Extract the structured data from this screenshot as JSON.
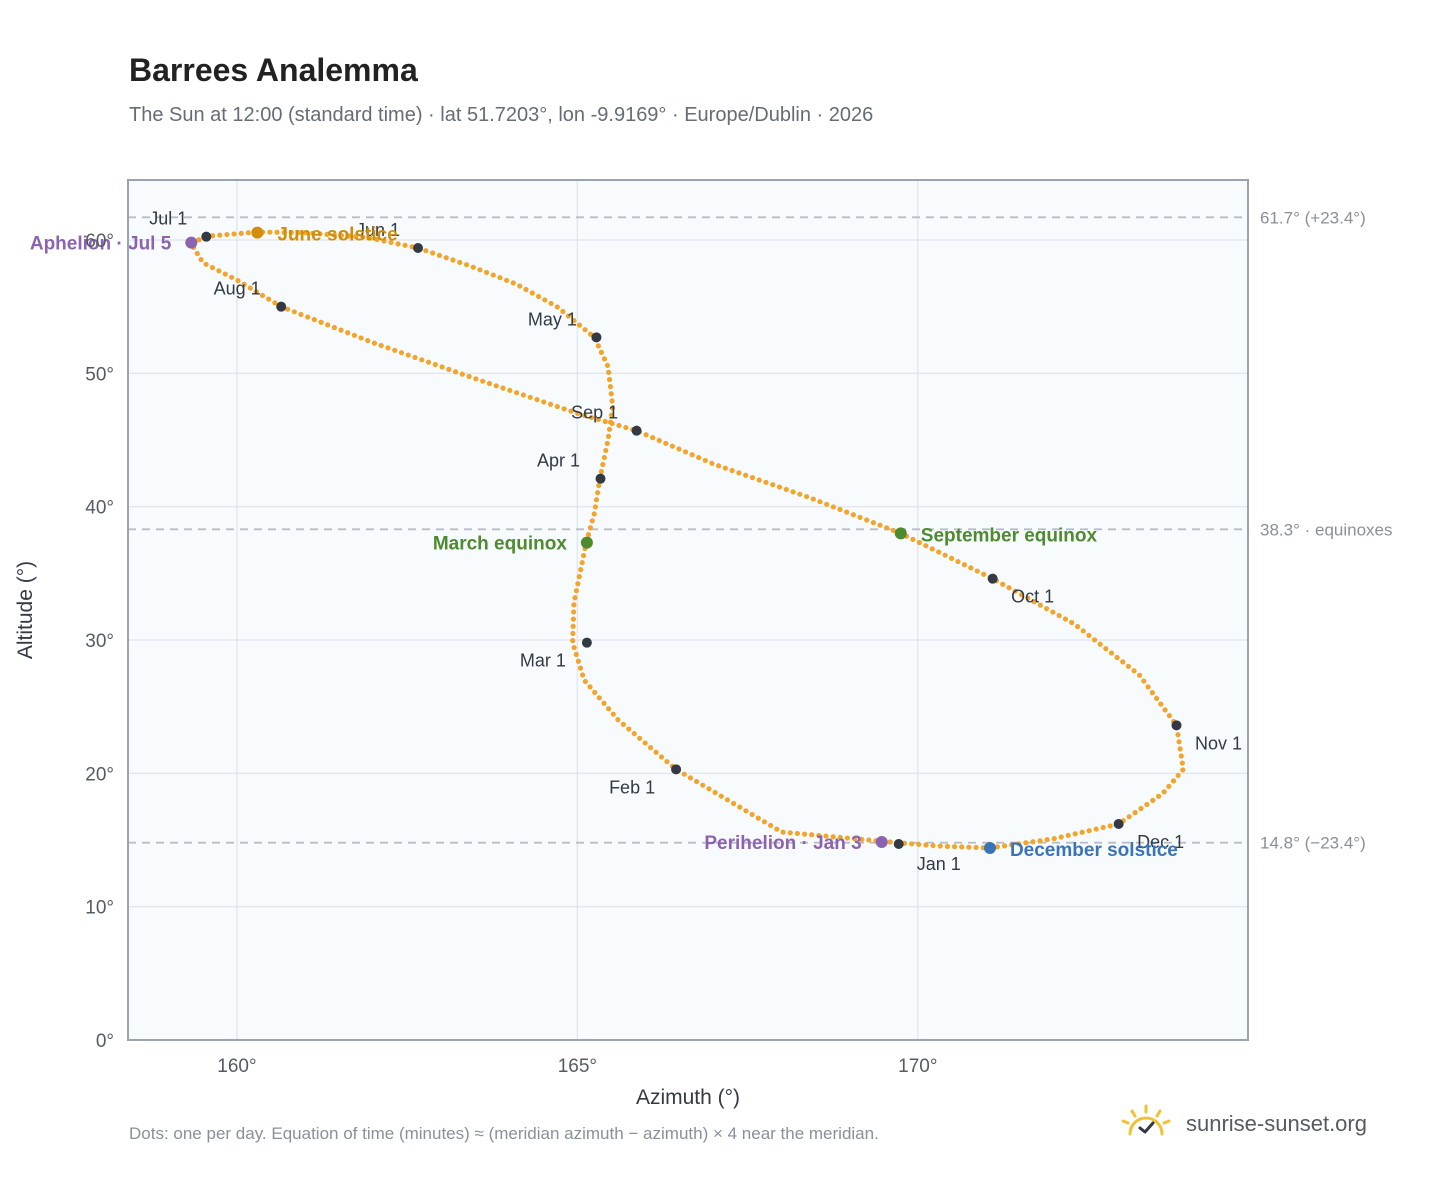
{
  "header": {
    "title": "Barrees Analemma",
    "subtitle": "The Sun at 12:00 (standard time) · lat 51.7203°, lon -9.9169° · Europe/Dublin · 2026"
  },
  "footer": {
    "note": "Dots: one per day. Equation of time (minutes) ≈ (meridian azimuth − azimuth) × 4 near the meridian.",
    "brand": "sunrise-sunset.org"
  },
  "colors": {
    "path": "#f2a52a",
    "month_marker": "#333a44",
    "perihelion_aphelion": "#8c63b0",
    "june_solstice": "#d18e0c",
    "december_solstice": "#3a74b6",
    "equinox": "#4e8a2e",
    "plot_bg": "#f8fbfe",
    "grid": "#e3e8ee",
    "reference_line": "#b9bec6"
  },
  "chart_data": {
    "type": "scatter",
    "xlabel": "Azimuth (°)",
    "ylabel": "Altitude (°)",
    "xlim": [
      158.4,
      174.85
    ],
    "ylim": [
      0,
      64.5
    ],
    "xticks": [
      160,
      165,
      170
    ],
    "xtick_labels": [
      "160°",
      "165°",
      "170°"
    ],
    "yticks": [
      0,
      10,
      20,
      30,
      40,
      50,
      60
    ],
    "ytick_labels": [
      "0°",
      "10°",
      "20°",
      "30°",
      "40°",
      "50°",
      "60°"
    ],
    "grid": true,
    "series": [
      {
        "description_points": "approximate daily sun positions (azimuth, altitude), one per day through the year",
        "points": [
          [
            169.7,
            14.8
          ],
          [
            168.0,
            15.6
          ],
          [
            166.45,
            20.3
          ],
          [
            165.6,
            24.0
          ],
          [
            165.1,
            27.0
          ],
          [
            164.93,
            29.8
          ],
          [
            164.95,
            32.8
          ],
          [
            165.13,
            37.3
          ],
          [
            165.25,
            39.5
          ],
          [
            165.33,
            42.1
          ],
          [
            165.45,
            45.0
          ],
          [
            165.52,
            47.5
          ],
          [
            165.45,
            50.5
          ],
          [
            165.25,
            52.7
          ],
          [
            164.7,
            55.0
          ],
          [
            164.1,
            56.7
          ],
          [
            163.4,
            58.1
          ],
          [
            162.66,
            59.4
          ],
          [
            161.9,
            60.2
          ],
          [
            161.0,
            60.55
          ],
          [
            160.3,
            60.6
          ],
          [
            159.6,
            60.3
          ],
          [
            159.32,
            59.8
          ],
          [
            159.5,
            58.3
          ],
          [
            160.0,
            57.0
          ],
          [
            160.65,
            55.0
          ],
          [
            162.0,
            52.3
          ],
          [
            163.5,
            49.6
          ],
          [
            165.0,
            47.0
          ],
          [
            165.87,
            45.7
          ],
          [
            167.0,
            43.2
          ],
          [
            168.4,
            40.7
          ],
          [
            169.75,
            38.0
          ],
          [
            171.1,
            34.6
          ],
          [
            172.3,
            31.2
          ],
          [
            173.25,
            27.4
          ],
          [
            173.8,
            23.6
          ],
          [
            173.9,
            20.3
          ],
          [
            173.6,
            18.5
          ],
          [
            172.95,
            16.2
          ],
          [
            172.0,
            15.1
          ],
          [
            171.06,
            14.4
          ],
          [
            170.3,
            14.55
          ],
          [
            169.7,
            14.8
          ]
        ]
      }
    ],
    "month_markers": [
      {
        "label": "Jan 1",
        "x": 169.72,
        "y": 14.7
      },
      {
        "label": "Feb 1",
        "x": 166.45,
        "y": 20.3
      },
      {
        "label": "Mar 1",
        "x": 165.14,
        "y": 29.8
      },
      {
        "label": "Apr 1",
        "x": 165.34,
        "y": 42.1
      },
      {
        "label": "May 1",
        "x": 165.28,
        "y": 52.7
      },
      {
        "label": "Jun 1",
        "x": 162.66,
        "y": 59.4
      },
      {
        "label": "Jul 1",
        "x": 159.55,
        "y": 60.25
      },
      {
        "label": "Aug 1",
        "x": 160.65,
        "y": 55.0
      },
      {
        "label": "Sep 1",
        "x": 165.87,
        "y": 45.7
      },
      {
        "label": "Oct 1",
        "x": 171.1,
        "y": 34.6
      },
      {
        "label": "Nov 1",
        "x": 173.8,
        "y": 23.6
      },
      {
        "label": "Dec 1",
        "x": 172.95,
        "y": 16.2
      }
    ],
    "events": [
      {
        "label": "Perihelion · Jan 3",
        "x": 169.47,
        "y": 14.85,
        "kind": "perihelion_aphelion"
      },
      {
        "label": "Aphelion · Jul 5",
        "x": 159.33,
        "y": 59.8,
        "kind": "perihelion_aphelion"
      },
      {
        "label": "June solstice",
        "x": 160.3,
        "y": 60.55,
        "kind": "june_solstice"
      },
      {
        "label": "December solstice",
        "x": 171.06,
        "y": 14.4,
        "kind": "december_solstice"
      },
      {
        "label": "March equinox",
        "x": 165.14,
        "y": 37.3,
        "kind": "equinox"
      },
      {
        "label": "September equinox",
        "x": 169.75,
        "y": 38.0,
        "kind": "equinox"
      }
    ],
    "reference_lines": [
      {
        "y": 61.7,
        "label": "61.7° (+23.4°)"
      },
      {
        "y": 38.3,
        "label": "38.3° · equinoxes"
      },
      {
        "y": 14.8,
        "label": "14.8° (−23.4°)"
      }
    ]
  }
}
